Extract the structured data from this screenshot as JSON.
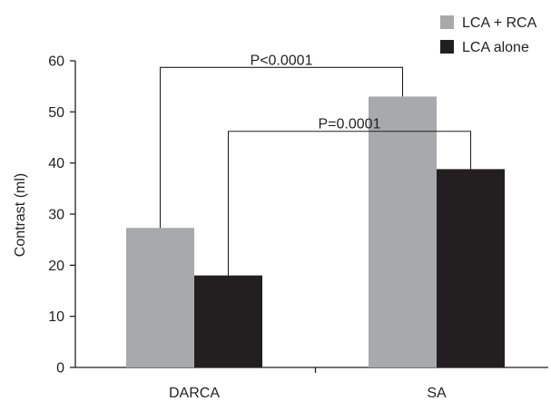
{
  "chart_data": {
    "type": "bar",
    "categories": [
      "DARCA",
      "SA"
    ],
    "series": [
      {
        "name": "LCA + RCA",
        "values": [
          27.3,
          53
        ],
        "color": "#a7a9ac"
      },
      {
        "name": "LCA alone",
        "values": [
          18,
          38.8
        ],
        "color": "#231f20"
      }
    ],
    "ylabel": "Contrast (ml)",
    "xlabel": "",
    "ylim": [
      0,
      60
    ],
    "yticks": [
      0,
      10,
      20,
      30,
      40,
      50,
      60
    ],
    "grid": false,
    "legend": "top-right",
    "annotations": [
      {
        "text": "P<0.0001",
        "from_category": "DARCA",
        "from_series": "LCA + RCA",
        "to_category": "SA",
        "to_series": "LCA + RCA",
        "bracket_y": 58.7
      },
      {
        "text": "P=0.0001",
        "from_category": "DARCA",
        "from_series": "LCA alone",
        "to_category": "SA",
        "to_series": "LCA alone",
        "bracket_y": 46.2
      }
    ]
  }
}
